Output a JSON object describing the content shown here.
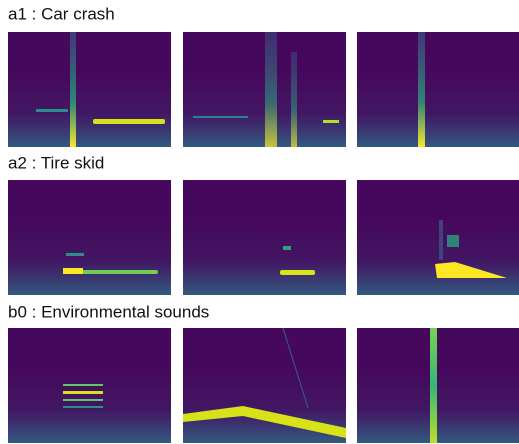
{
  "sections": [
    {
      "label": "a1 : Car crash"
    },
    {
      "label": "a2 : Tire skid"
    },
    {
      "label": "b0 : Environmental sounds"
    }
  ]
}
